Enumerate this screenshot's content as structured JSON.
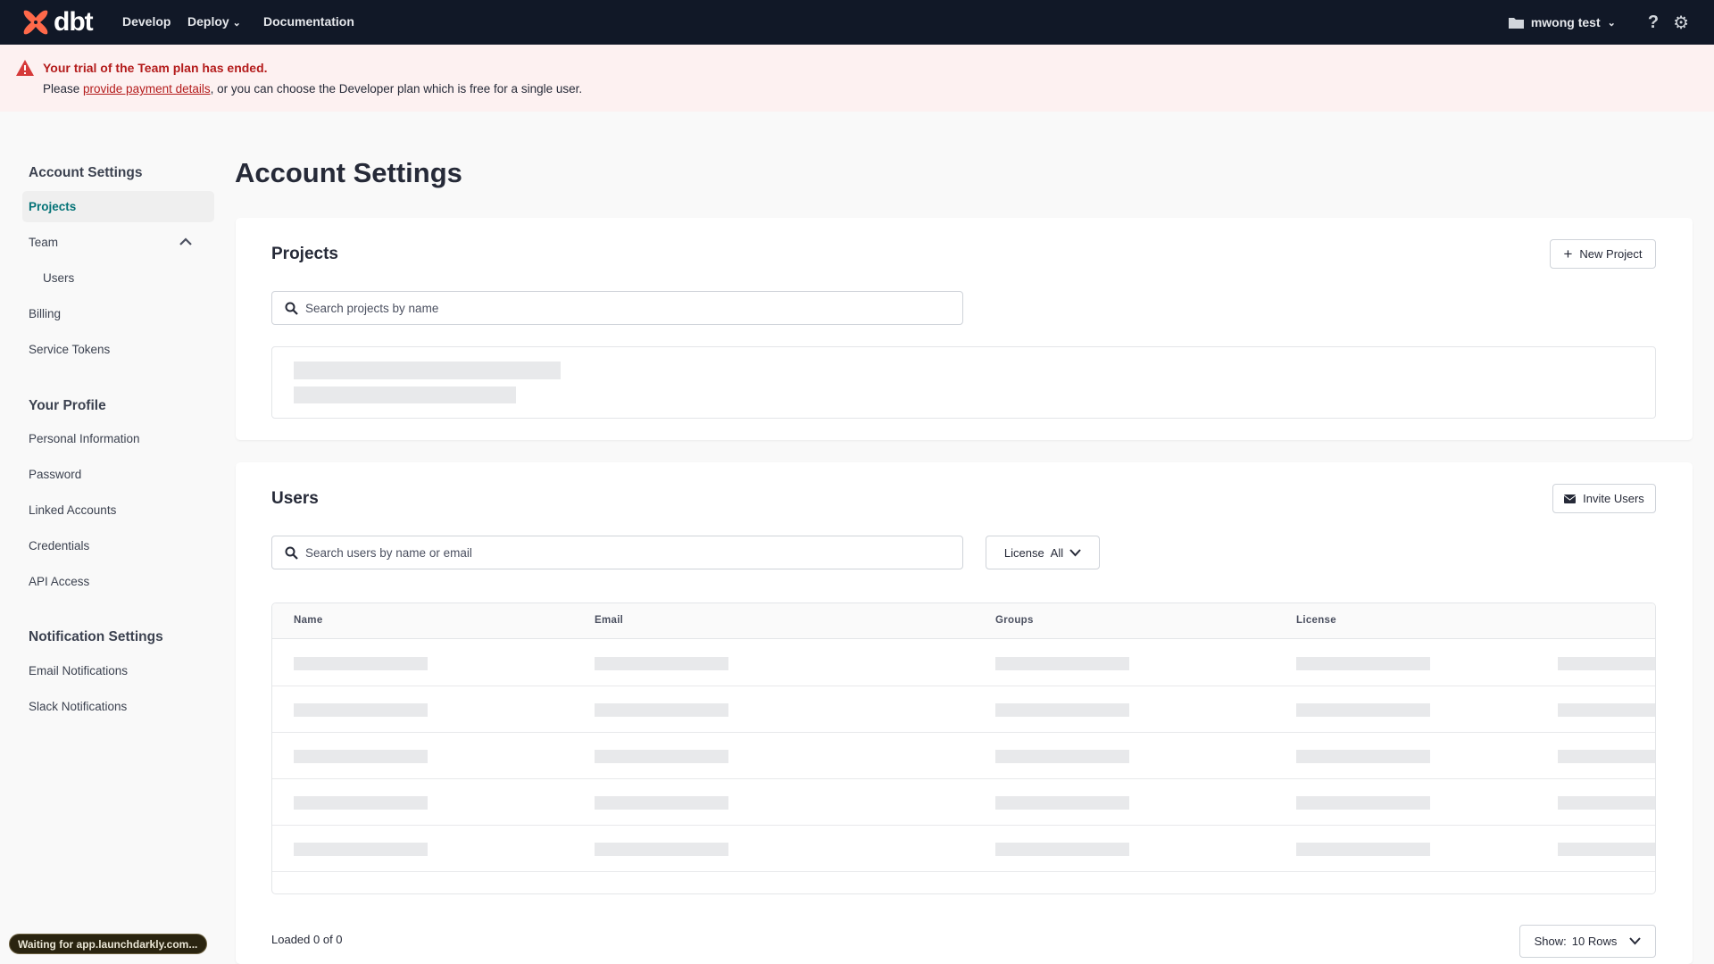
{
  "nav": {
    "brand": "dbt",
    "links": [
      "Develop",
      "Deploy",
      "Documentation"
    ],
    "project": "mwong test"
  },
  "banner": {
    "title": "Your trial of the Team plan has ended.",
    "prefix": "Please ",
    "link": "provide payment details",
    "suffix": ", or you can choose the Developer plan which is free for a single user."
  },
  "sidebar": {
    "account_heading": "Account Settings",
    "projects": "Projects",
    "team": "Team",
    "users": "Users",
    "billing": "Billing",
    "service_tokens": "Service Tokens",
    "profile_heading": "Your Profile",
    "personal": "Personal Information",
    "password": "Password",
    "linked": "Linked Accounts",
    "credentials": "Credentials",
    "api": "API Access",
    "notif_heading": "Notification Settings",
    "email": "Email Notifications",
    "slack": "Slack Notifications"
  },
  "main": {
    "title": "Account Settings",
    "projects": {
      "title": "Projects",
      "new_button": "New Project",
      "search_placeholder": "Search projects by name"
    },
    "users": {
      "title": "Users",
      "invite_button": "Invite Users",
      "search_placeholder": "Search users by name or email",
      "license_label": "License",
      "license_value": "All",
      "columns": [
        "Name",
        "Email",
        "Groups",
        "License"
      ],
      "loaded": "Loaded 0 of 0",
      "show_label": "Show:",
      "show_value": "10 Rows"
    }
  },
  "status_bar": "Waiting for app.launchdarkly.com...",
  "colors": {
    "nav_bg": "#111827",
    "brand": "#ff694a",
    "active": "#047377",
    "error": "#b41c1c"
  }
}
